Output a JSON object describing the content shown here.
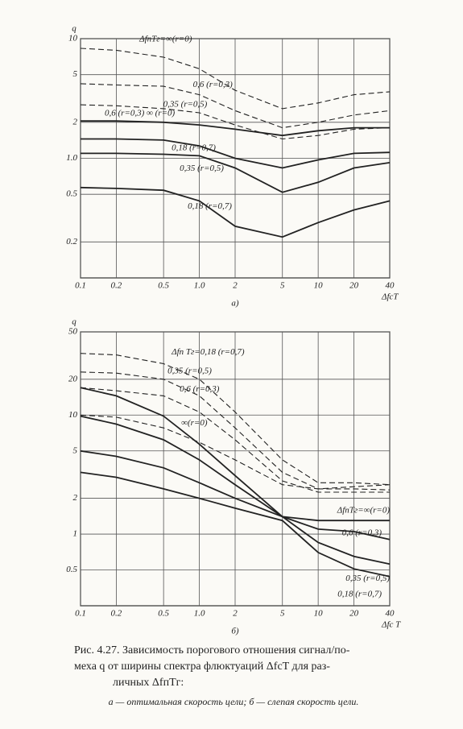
{
  "chart_data": [
    {
      "type": "line",
      "ylabel": "q",
      "xlabel": "ΔfсT",
      "sublabel": "а)",
      "log_x": true,
      "log_y": true,
      "grid": true,
      "color": "#222",
      "x": [
        0.1,
        0.2,
        0.5,
        1,
        2,
        5,
        10,
        20,
        40
      ],
      "xlim": [
        0.1,
        40
      ],
      "xticks": [
        0.1,
        0.2,
        0.5,
        {
          "value": 1,
          "label": "1.0"
        },
        2,
        5,
        10,
        20,
        40
      ],
      "ylim": [
        0.1,
        10
      ],
      "yticks": [
        0.2,
        0.5,
        {
          "value": 1,
          "label": "1.0"
        },
        2,
        5,
        10
      ],
      "series": [
        {
          "name": "ΔfпTг=∞(r=0)",
          "dashed": true,
          "values": [
            8.3,
            8,
            7,
            5.6,
            3.7,
            2.6,
            2.9,
            3.4,
            3.6
          ]
        },
        {
          "name": "0,6 (r=0,3)",
          "dashed": true,
          "values": [
            4.2,
            4.1,
            4.0,
            3.4,
            2.5,
            1.8,
            2.0,
            2.3,
            2.5
          ]
        },
        {
          "name": "0,35 (r=0,5)",
          "dashed": true,
          "values": [
            2.8,
            2.75,
            2.6,
            2.4,
            1.9,
            1.45,
            1.55,
            1.75,
            1.8
          ]
        },
        {
          "name": "0,6 (r=0,3) ∞ (r=0)",
          "dashed": false,
          "values": [
            2.05,
            2.05,
            2.0,
            1.9,
            1.75,
            1.55,
            1.7,
            1.8,
            1.8
          ]
        },
        {
          "name": "0,18 (r=0,7)",
          "dashed": false,
          "values": [
            1.45,
            1.45,
            1.42,
            1.27,
            1.0,
            0.83,
            0.97,
            1.1,
            1.12
          ]
        },
        {
          "name": "0,35 (r=0,5)",
          "dashed": false,
          "values": [
            1.1,
            1.1,
            1.08,
            1.05,
            0.83,
            0.52,
            0.63,
            0.83,
            0.92
          ]
        },
        {
          "name": "0,18 (r=0,7)",
          "dashed": false,
          "values": [
            0.57,
            0.56,
            0.54,
            0.44,
            0.27,
            0.22,
            0.29,
            0.37,
            0.44
          ]
        }
      ]
    },
    {
      "type": "line",
      "ylabel": "q",
      "xlabel": "Δfс T",
      "sublabel": "б)",
      "log_x": true,
      "log_y": true,
      "grid": true,
      "color": "#222",
      "x": [
        0.1,
        0.2,
        0.5,
        1,
        2,
        5,
        10,
        20,
        40
      ],
      "xlim": [
        0.1,
        40
      ],
      "xticks": [
        0.1,
        0.2,
        0.5,
        {
          "value": 1,
          "label": "1.0"
        },
        2,
        5,
        10,
        20,
        40
      ],
      "ylim": [
        0.25,
        50
      ],
      "yticks": [
        0.5,
        1,
        2,
        5,
        10,
        20,
        50
      ],
      "series": [
        {
          "name": "Δfп Tг=0,18 (r=0,7)",
          "dashed": true,
          "values": [
            33,
            32,
            27,
            20,
            10.6,
            4.2,
            2.7,
            2.7,
            2.6
          ]
        },
        {
          "name": "0,35 (r=0,5)",
          "dashed": true,
          "values": [
            23,
            22.5,
            20,
            14.5,
            7.8,
            3.3,
            2.4,
            2.4,
            2.35
          ]
        },
        {
          "name": "0,6 (r=0,3)",
          "dashed": true,
          "values": [
            17,
            16,
            14.5,
            10.6,
            6.2,
            2.8,
            2.25,
            2.25,
            2.25
          ]
        },
        {
          "name": "∞(r=0)",
          "dashed": true,
          "values": [
            10,
            9.6,
            7.8,
            5.9,
            4.2,
            2.6,
            2.4,
            2.5,
            2.6
          ]
        },
        {
          "name": "ΔfпTг=∞(r=0)",
          "dashed": false,
          "values": [
            17,
            14.5,
            9.8,
            5.7,
            3.1,
            1.4,
            1.3,
            1.3,
            1.3
          ]
        },
        {
          "name": "0,6 (r=0,3)",
          "dashed": false,
          "values": [
            9.8,
            8.4,
            6.2,
            4.2,
            2.6,
            1.4,
            1.1,
            1.05,
            0.9
          ]
        },
        {
          "name": "0,35 (r=0,5)",
          "dashed": false,
          "values": [
            5.0,
            4.5,
            3.6,
            2.7,
            2.0,
            1.4,
            0.85,
            0.65,
            0.56
          ]
        },
        {
          "name": "0,18 (r=0,7)",
          "dashed": false,
          "values": [
            3.3,
            3.0,
            2.4,
            2.0,
            1.65,
            1.3,
            0.7,
            0.51,
            0.44
          ]
        }
      ]
    }
  ],
  "caption": {
    "lines": [
      "Рис. 4.27. Зависимость порогового отношения сигнал/по-",
      "меха q от ширины спектра флюктуаций ΔfсT для раз-",
      "личных ΔfпTг:"
    ],
    "note": "а — оптимальная скорость цели; б — слепая скорость цели."
  }
}
